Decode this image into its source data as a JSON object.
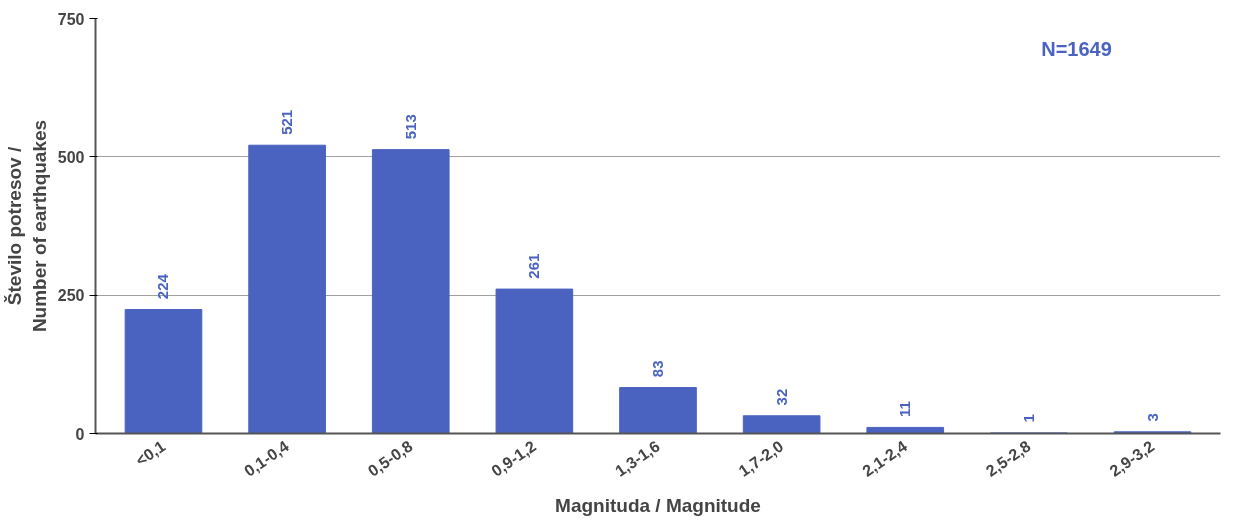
{
  "chart_data": {
    "type": "bar",
    "xlabel": "Magnituda / Magnitude",
    "ylabel": "Število potresov /\nNumber of earthquakes",
    "categories": [
      "<0,1",
      "0,1-0,4",
      "0,5-0,8",
      "0,9-1,2",
      "1,3-1,6",
      "1,7-2,0",
      "2,1-2,4",
      "2,5-2,8",
      "2,9-3,2"
    ],
    "values": [
      224,
      521,
      513,
      261,
      83,
      32,
      11,
      1,
      3
    ],
    "color": "#4a63c0",
    "ylim": [
      0,
      750
    ],
    "yticks": [
      0,
      250,
      500,
      750
    ],
    "grid": "y",
    "data_labels": true,
    "annotations": [
      "N=1649"
    ]
  }
}
